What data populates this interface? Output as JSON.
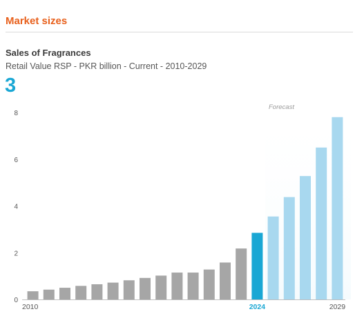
{
  "section": {
    "title": "Market sizes"
  },
  "chart": {
    "title": "Sales of Fragrances",
    "subtitle": "Retail Value RSP - PKR billion - Current - 2010-2029",
    "number": "3",
    "forecast_label": "Forecast"
  },
  "colors": {
    "accent": "#e8601c",
    "number": "#1aa7d4",
    "historic": "#a6a6a6",
    "current": "#1aa7d4",
    "forecast": "#a8d8ef"
  },
  "chart_data": {
    "type": "bar",
    "categories": [
      "2010",
      "2011",
      "2012",
      "2013",
      "2014",
      "2015",
      "2016",
      "2017",
      "2018",
      "2019",
      "2020",
      "2021",
      "2022",
      "2023",
      "2024",
      "2025",
      "2026",
      "2027",
      "2028",
      "2029"
    ],
    "values": [
      0.35,
      0.42,
      0.5,
      0.58,
      0.65,
      0.72,
      0.82,
      0.92,
      1.02,
      1.15,
      1.15,
      1.28,
      1.58,
      2.18,
      2.85,
      3.55,
      4.38,
      5.28,
      6.5,
      7.8
    ],
    "current_year": "2024",
    "forecast_start": "2025",
    "x_tick_labels": [
      "2010",
      "2024",
      "2029"
    ],
    "y_ticks": [
      0,
      2,
      4,
      6,
      8
    ],
    "ylim": [
      0,
      8
    ],
    "grid": false,
    "xlabel": "",
    "ylabel": ""
  }
}
